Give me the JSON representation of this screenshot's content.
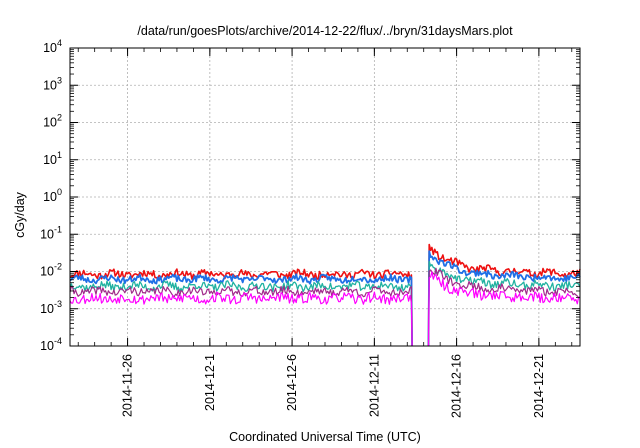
{
  "chart_data": {
    "type": "line",
    "title": "/data/run/goesPlots/archive/2014-12-22/flux/../bryn/31daysMars.plot",
    "xlabel": "Coordinated Universal Time (UTC)",
    "ylabel": "cGy/day",
    "y_scale": "log",
    "ylim": [
      0.0001,
      10000
    ],
    "y_ticks": [
      {
        "value": 0.0001,
        "base": "10",
        "exp": "-4"
      },
      {
        "value": 0.001,
        "base": "10",
        "exp": "-3"
      },
      {
        "value": 0.01,
        "base": "10",
        "exp": "-2"
      },
      {
        "value": 0.1,
        "base": "10",
        "exp": "-1"
      },
      {
        "value": 1,
        "base": "10",
        "exp": "0"
      },
      {
        "value": 10,
        "base": "10",
        "exp": "1"
      },
      {
        "value": 100,
        "base": "10",
        "exp": "2"
      },
      {
        "value": 1000,
        "base": "10",
        "exp": "3"
      },
      {
        "value": 10000,
        "base": "10",
        "exp": "4"
      }
    ],
    "xlim": [
      "2014-11-22T12:00",
      "2014-12-23T12:00"
    ],
    "x_ticks": [
      "2014-11-26",
      "2014-12-1",
      "2014-12-6",
      "2014-12-11",
      "2014-12-16",
      "2014-12-21"
    ],
    "grid": true,
    "gap": {
      "start": "2014-12-13T07:00",
      "end": "2014-12-14T07:00"
    },
    "series": [
      {
        "color": "#ee1111",
        "width": 1.6,
        "base": 0.0085,
        "noise": 0.1,
        "seed": 11,
        "post_base": 0.0115,
        "peak": 0.045
      },
      {
        "color": "#1f6fe6",
        "width": 1.8,
        "base": 0.0063,
        "noise": 0.09,
        "seed": 23,
        "post_base": 0.0087,
        "peak": 0.033
      },
      {
        "color": "#20b2a0",
        "width": 1.3,
        "base": 0.004,
        "noise": 0.11,
        "seed": 37,
        "post_base": 0.0053,
        "peak": 0.0165
      },
      {
        "color": "#a02a8a",
        "width": 1.2,
        "base": 0.0029,
        "noise": 0.11,
        "seed": 41,
        "post_base": 0.0037,
        "peak": 0.0125
      },
      {
        "color": "#ff00ff",
        "width": 1.2,
        "base": 0.0019,
        "noise": 0.14,
        "seed": 53,
        "post_base": 0.0025,
        "peak": 0.0078
      }
    ]
  }
}
